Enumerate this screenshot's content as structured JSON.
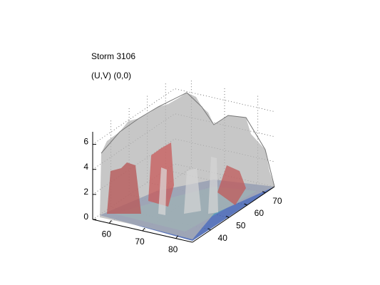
{
  "chart_data": {
    "type": "surface3d",
    "title": "Storm 3106",
    "subtitle": "(U,V) (0,0)",
    "zlim": [
      0,
      7
    ],
    "zticks": [
      0,
      2,
      4,
      6
    ],
    "xlim": [
      55,
      85
    ],
    "xticks": [
      60,
      70,
      80
    ],
    "ylim": [
      30,
      75
    ],
    "yticks": [
      40,
      50,
      60,
      70
    ],
    "grid": true
  }
}
